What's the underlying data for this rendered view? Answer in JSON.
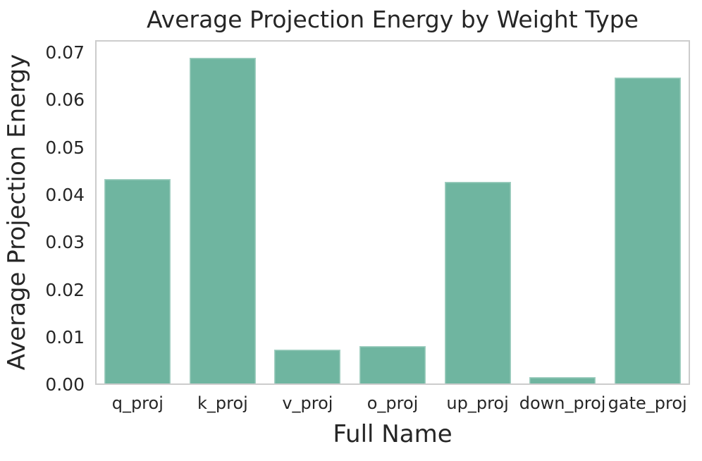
{
  "figure": {
    "background": "#ffffff",
    "text_color": "#262626",
    "axis_edge_color": "#cccccc"
  },
  "chart_data": {
    "type": "bar",
    "title": "Average Projection Energy by Weight Type",
    "xlabel": "Full Name",
    "ylabel": "Average Projection Energy",
    "categories": [
      "q_proj",
      "k_proj",
      "v_proj",
      "o_proj",
      "up_proj",
      "down_proj",
      "gate_proj"
    ],
    "values": [
      0.0434,
      0.069,
      0.0074,
      0.0082,
      0.0428,
      0.0016,
      0.0649
    ],
    "ylim": [
      0,
      0.0727
    ],
    "yticks": [
      0.0,
      0.01,
      0.02,
      0.03,
      0.04,
      0.05,
      0.06,
      0.07
    ],
    "ytick_labels": [
      "0.00",
      "0.01",
      "0.02",
      "0.03",
      "0.04",
      "0.05",
      "0.06",
      "0.07"
    ],
    "bar_color": "#6fb5a0",
    "bar_width_fraction": 0.78,
    "grid": false,
    "legend": "none"
  }
}
